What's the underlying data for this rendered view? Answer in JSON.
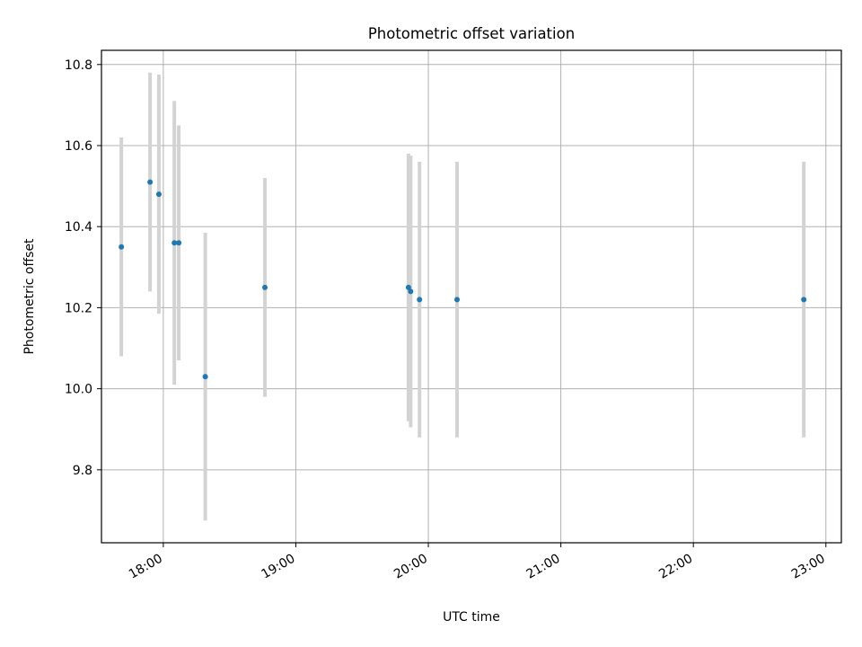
{
  "chart_data": {
    "type": "scatter",
    "title": "Photometric offset variation",
    "xlabel": "UTC time",
    "ylabel": "Photometric offset",
    "xlim": [
      "17:32",
      "23:07"
    ],
    "ylim": [
      9.62,
      10.835
    ],
    "xticks": [
      "18:00",
      "19:00",
      "20:00",
      "21:00",
      "22:00",
      "23:00"
    ],
    "yticks": [
      9.8,
      10.0,
      10.2,
      10.4,
      10.6,
      10.8
    ],
    "grid": true,
    "legend": "none",
    "colors": {
      "point": "#1f77b4",
      "errorbar": "#d3d3d3",
      "grid": "#b0b0b0"
    },
    "points": [
      {
        "x": "17:41",
        "y": 10.35,
        "err": 0.27
      },
      {
        "x": "17:54",
        "y": 10.51,
        "err": 0.27
      },
      {
        "x": "17:58",
        "y": 10.48,
        "err": 0.295
      },
      {
        "x": "18:05",
        "y": 10.36,
        "err": 0.35
      },
      {
        "x": "18:07",
        "y": 10.36,
        "err": 0.29
      },
      {
        "x": "18:19",
        "y": 10.03,
        "err": 0.355
      },
      {
        "x": "18:46",
        "y": 10.25,
        "err": 0.27
      },
      {
        "x": "19:51",
        "y": 10.25,
        "err": 0.33
      },
      {
        "x": "19:52",
        "y": 10.24,
        "err": 0.335
      },
      {
        "x": "19:56",
        "y": 10.22,
        "err": 0.34
      },
      {
        "x": "20:13",
        "y": 10.22,
        "err": 0.34
      },
      {
        "x": "22:50",
        "y": 10.22,
        "err": 0.34
      }
    ]
  }
}
